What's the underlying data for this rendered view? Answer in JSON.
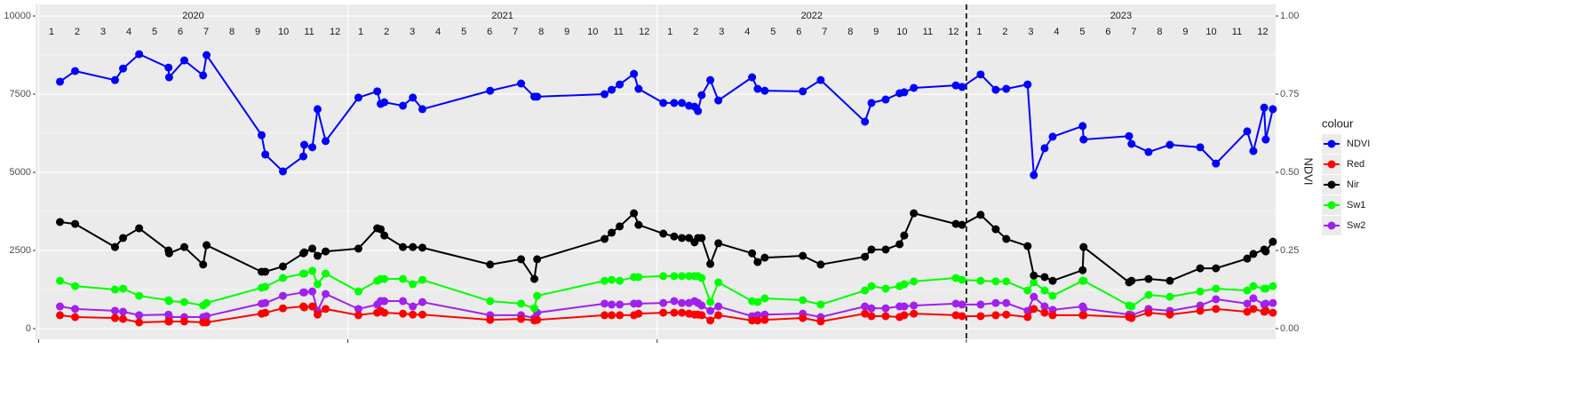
{
  "chart_data": {
    "type": "line",
    "y2_title": "NDVI",
    "legend_title": "colour",
    "legend_position": "right",
    "grid": true,
    "year_labels": [
      2020,
      2021,
      2022,
      2023
    ],
    "month_labels": [
      1,
      2,
      3,
      4,
      5,
      6,
      7,
      8,
      9,
      10,
      11,
      12
    ],
    "vline": 2023,
    "xlim": [
      2019.99,
      2024.0
    ],
    "xticks": [
      2020,
      2021,
      2022,
      2023
    ],
    "ylim": [
      -340,
      10370
    ],
    "yticks": [
      0,
      2500,
      5000,
      7500,
      10000
    ],
    "y2lim": [
      -0.034,
      1.037
    ],
    "y2ticks": [
      {
        "value": 0,
        "label": "0.00"
      },
      {
        "value": 0.25,
        "label": "0.25"
      },
      {
        "value": 0.5,
        "label": "0.50"
      },
      {
        "value": 0.75,
        "label": "0.75"
      },
      {
        "value": 1,
        "label": "1.00"
      }
    ],
    "x": [
      2020.069,
      2020.118,
      2020.247,
      2020.273,
      2020.325,
      2020.42,
      2020.422,
      2020.471,
      2020.532,
      2020.543,
      2020.721,
      2020.733,
      2020.79,
      2020.856,
      2020.859,
      2020.885,
      2020.902,
      2020.928,
      2021.034,
      2021.095,
      2021.106,
      2021.118,
      2021.178,
      2021.21,
      2021.241,
      2021.46,
      2021.56,
      2021.603,
      2021.612,
      2021.83,
      2021.853,
      2021.879,
      2021.925,
      2021.94,
      2022.02,
      2022.055,
      2022.08,
      2022.103,
      2022.121,
      2022.132,
      2022.144,
      2022.172,
      2022.198,
      2022.307,
      2022.325,
      2022.348,
      2022.471,
      2022.529,
      2022.672,
      2022.693,
      2022.739,
      2022.784,
      2022.799,
      2022.83,
      2022.966,
      2022.986,
      2023.046,
      2023.095,
      2023.129,
      2023.198,
      2023.218,
      2023.253,
      2023.279,
      2023.376,
      2023.379,
      2023.526,
      2023.534,
      2023.589,
      2023.658,
      2023.756,
      2023.807,
      2023.908,
      2023.928,
      2023.963,
      2023.968,
      2023.991
    ],
    "series": [
      {
        "name": "NDVI",
        "color": "#0000ff",
        "values": [
          7900,
          8240,
          7950,
          8320,
          8780,
          8350,
          8040,
          8580,
          8100,
          8750,
          6190,
          5570,
          5030,
          5510,
          5880,
          5800,
          7020,
          6000,
          7390,
          7590,
          7190,
          7240,
          7130,
          7390,
          7020,
          7610,
          7840,
          7420,
          7420,
          7500,
          7640,
          7810,
          8150,
          7670,
          7220,
          7220,
          7220,
          7130,
          7100,
          6960,
          7470,
          7950,
          7300,
          8040,
          7670,
          7610,
          7590,
          7950,
          6620,
          7220,
          7330,
          7530,
          7560,
          7700,
          7780,
          7730,
          8130,
          7640,
          7670,
          7810,
          4910,
          5770,
          6140,
          6480,
          6050,
          6160,
          5910,
          5650,
          5880,
          5800,
          5280,
          6310,
          5680,
          7070,
          6050,
          7020
        ]
      },
      {
        "name": "Red",
        "color": "#ff0000",
        "values": [
          430,
          370,
          340,
          310,
          200,
          230,
          230,
          230,
          200,
          200,
          480,
          510,
          650,
          710,
          680,
          710,
          450,
          630,
          430,
          510,
          570,
          510,
          480,
          450,
          450,
          280,
          310,
          260,
          280,
          430,
          430,
          430,
          430,
          480,
          510,
          510,
          510,
          480,
          450,
          450,
          430,
          260,
          430,
          260,
          260,
          280,
          340,
          230,
          480,
          400,
          400,
          370,
          430,
          480,
          430,
          400,
          400,
          430,
          450,
          370,
          630,
          510,
          430,
          430,
          430,
          370,
          340,
          510,
          450,
          570,
          630,
          540,
          630,
          540,
          570,
          510
        ]
      },
      {
        "name": "Nir",
        "color": "#000000",
        "values": [
          3410,
          3350,
          2610,
          2900,
          3210,
          2500,
          2410,
          2610,
          2050,
          2670,
          1820,
          1820,
          1990,
          2410,
          2440,
          2560,
          2330,
          2470,
          2560,
          3210,
          3180,
          2980,
          2610,
          2610,
          2590,
          2050,
          2220,
          1590,
          2220,
          2870,
          3070,
          3270,
          3690,
          3320,
          3040,
          2950,
          2900,
          2900,
          2760,
          2900,
          2900,
          2070,
          2730,
          2410,
          2130,
          2270,
          2330,
          2050,
          2300,
          2530,
          2530,
          2700,
          2980,
          3690,
          3350,
          3320,
          3640,
          3180,
          2870,
          2640,
          1700,
          1650,
          1530,
          1870,
          2610,
          1480,
          1530,
          1590,
          1530,
          1930,
          1930,
          2240,
          2390,
          2530,
          2470,
          2780
        ]
      },
      {
        "name": "Sw1",
        "color": "#00ff00",
        "values": [
          1530,
          1360,
          1250,
          1280,
          1050,
          910,
          880,
          850,
          740,
          820,
          1310,
          1340,
          1620,
          1760,
          1760,
          1850,
          1420,
          1760,
          1190,
          1530,
          1590,
          1590,
          1590,
          1420,
          1560,
          880,
          800,
          650,
          1050,
          1530,
          1560,
          1530,
          1650,
          1650,
          1680,
          1680,
          1680,
          1680,
          1680,
          1680,
          1620,
          850,
          1480,
          880,
          850,
          970,
          910,
          770,
          1220,
          1360,
          1280,
          1360,
          1420,
          1510,
          1620,
          1560,
          1530,
          1510,
          1510,
          1220,
          1480,
          1220,
          1050,
          1530,
          1530,
          740,
          710,
          1080,
          1020,
          1190,
          1280,
          1220,
          1360,
          1280,
          1280,
          1360
        ]
      },
      {
        "name": "Sw2",
        "color": "#a020f0",
        "values": [
          710,
          630,
          570,
          540,
          430,
          450,
          370,
          370,
          370,
          400,
          800,
          820,
          1050,
          1160,
          1160,
          1190,
          570,
          1110,
          630,
          770,
          880,
          880,
          880,
          710,
          850,
          430,
          430,
          340,
          510,
          800,
          770,
          770,
          800,
          800,
          820,
          880,
          820,
          820,
          880,
          820,
          740,
          570,
          710,
          400,
          430,
          450,
          480,
          370,
          710,
          650,
          650,
          710,
          710,
          740,
          800,
          770,
          770,
          820,
          820,
          570,
          1020,
          710,
          600,
          710,
          640,
          450,
          430,
          630,
          570,
          740,
          940,
          800,
          970,
          770,
          800,
          820
        ]
      }
    ]
  }
}
